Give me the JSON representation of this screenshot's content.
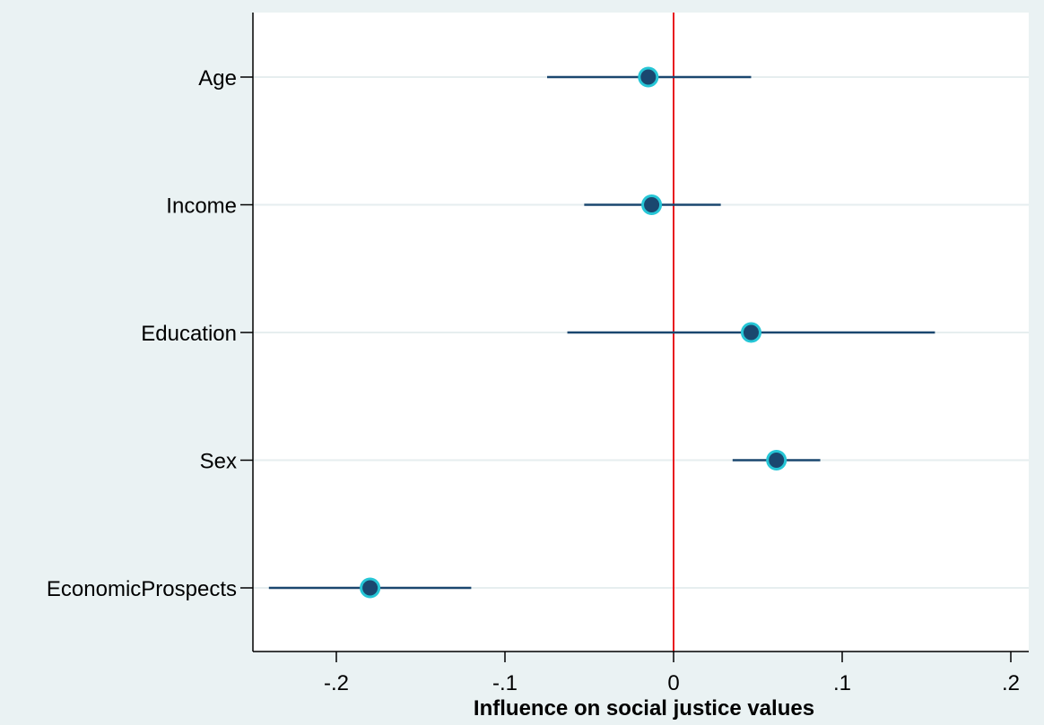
{
  "chart_data": {
    "type": "coefficient-plot",
    "title": "",
    "xlabel": "Influence on social justice values",
    "ylabel": "",
    "xlim": [
      -0.245,
      0.21
    ],
    "xticks": [
      -0.2,
      -0.1,
      0,
      0.1,
      0.2
    ],
    "xtick_labels": [
      "-.2",
      "-.1",
      "0",
      ".1",
      ".2"
    ],
    "reference_line": 0,
    "grid": "horizontal",
    "categories": [
      "Age",
      "Income",
      "Education",
      "Sex",
      "EconomicProspects"
    ],
    "estimates": [
      -0.015,
      -0.013,
      0.046,
      0.061,
      -0.18
    ],
    "ci_lower": [
      -0.075,
      -0.053,
      -0.063,
      0.035,
      -0.24
    ],
    "ci_upper": [
      0.046,
      0.028,
      0.155,
      0.087,
      -0.12
    ]
  },
  "colors": {
    "background": "#eaf2f3",
    "plot_area": "#ffffff",
    "grid": "#e6eeef",
    "ci_line": "#1a476f",
    "marker_fill": "#1a476f",
    "marker_edge": "#26c6d6",
    "reference_line": "#e8191f",
    "axis": "#000000"
  }
}
